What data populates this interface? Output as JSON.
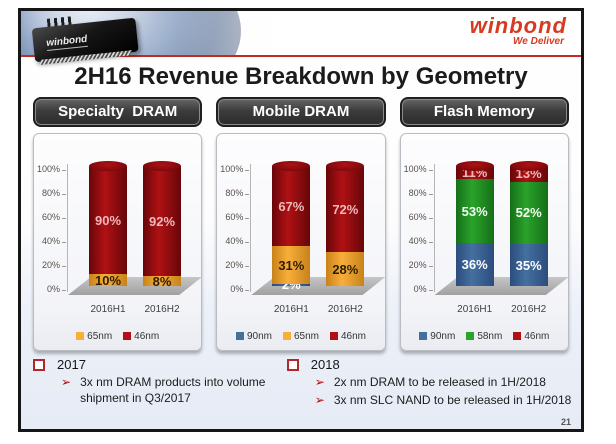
{
  "header": {
    "logo": "winbond",
    "tagline": "We Deliver",
    "chip_label": "winbond",
    "title": "2H16 Revenue Breakdown by Geometry"
  },
  "colors": {
    "red": {
      "mid": "#b01114",
      "edge": "#670609",
      "label": "#efb9b9"
    },
    "orange": {
      "mid": "#f8ae3a",
      "edge": "#c8821a",
      "label": "#2e1e00"
    },
    "blue": {
      "mid": "#44709f",
      "edge": "#2b4c7e",
      "label": "#ffffff"
    },
    "green": {
      "mid": "#2aa32b",
      "edge": "#156f17",
      "label": "#f2fff2"
    },
    "accent_red": "#c22b1e",
    "header_dark": "#3c3c3c"
  },
  "chart_data": [
    {
      "type": "bar",
      "stacked": true,
      "title": "Specialty  DRAM",
      "categories": [
        "2016H1",
        "2016H2"
      ],
      "series": [
        {
          "name": "65nm",
          "color_key": "orange",
          "values": [
            10,
            8
          ]
        },
        {
          "name": "46nm",
          "color_key": "red",
          "values": [
            90,
            92
          ]
        }
      ],
      "ylabel": "",
      "ylim": [
        0,
        100
      ],
      "yticks": [
        "0%",
        "20%",
        "40%",
        "60%",
        "80%",
        "100%"
      ],
      "legend_position": "bottom"
    },
    {
      "type": "bar",
      "stacked": true,
      "title": "Mobile DRAM",
      "categories": [
        "2016H1",
        "2016H2"
      ],
      "series": [
        {
          "name": "90nm",
          "color_key": "blue",
          "values": [
            2,
            0
          ]
        },
        {
          "name": "65nm",
          "color_key": "orange",
          "values": [
            31,
            28
          ]
        },
        {
          "name": "46nm",
          "color_key": "red",
          "values": [
            67,
            72
          ]
        }
      ],
      "ylabel": "",
      "ylim": [
        0,
        100
      ],
      "yticks": [
        "0%",
        "20%",
        "40%",
        "60%",
        "80%",
        "100%"
      ],
      "legend_position": "bottom"
    },
    {
      "type": "bar",
      "stacked": true,
      "title": "Flash Memory",
      "categories": [
        "2016H1",
        "2016H2"
      ],
      "series": [
        {
          "name": "90nm",
          "color_key": "blue",
          "values": [
            36,
            35
          ]
        },
        {
          "name": "58nm",
          "color_key": "green",
          "values": [
            53,
            52
          ]
        },
        {
          "name": "46nm",
          "color_key": "red",
          "values": [
            11,
            13
          ]
        }
      ],
      "ylabel": "",
      "ylim": [
        0,
        100
      ],
      "yticks": [
        "0%",
        "20%",
        "40%",
        "60%",
        "80%",
        "100%"
      ],
      "legend_position": "bottom"
    }
  ],
  "footnotes": [
    {
      "heading": "2017",
      "items": [
        "3x nm DRAM products into volume shipment in Q3/2017"
      ]
    },
    {
      "heading": "2018",
      "items": [
        "2x nm DRAM to be released in 1H/2018",
        "3x nm SLC NAND to be released in 1H/2018"
      ]
    }
  ],
  "page_number": "21"
}
